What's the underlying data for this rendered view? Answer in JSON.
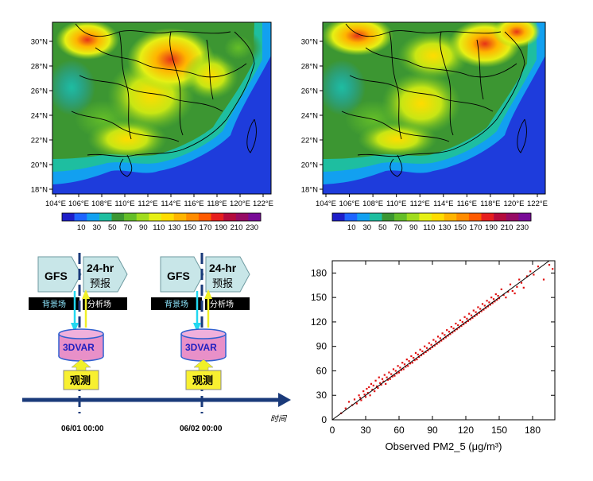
{
  "maps": [
    {
      "name": "left",
      "lat_labels": [
        "30°N",
        "28°N",
        "26°N",
        "24°N",
        "22°N",
        "20°N",
        "18°N"
      ],
      "lon_labels": [
        "104°E",
        "106°E",
        "108°E",
        "110°E",
        "112°E",
        "114°E",
        "116°E",
        "118°E",
        "120°E",
        "122°E"
      ],
      "colorbar_labels": [
        "10",
        "30",
        "50",
        "70",
        "90",
        "110",
        "130",
        "150",
        "170",
        "190",
        "210",
        "230"
      ]
    },
    {
      "name": "right",
      "lat_labels": [
        "30°N",
        "28°N",
        "26°N",
        "24°N",
        "22°N",
        "20°N",
        "18°N"
      ],
      "lon_labels": [
        "104°E",
        "106°E",
        "108°E",
        "110°E",
        "112°E",
        "114°E",
        "116°E",
        "118°E",
        "120°E",
        "122°E"
      ],
      "colorbar_labels": [
        "10",
        "30",
        "50",
        "70",
        "90",
        "110",
        "130",
        "150",
        "170",
        "190",
        "210",
        "230"
      ]
    }
  ],
  "colorbar_colors": [
    "#1e1ec8",
    "#1e64ff",
    "#12a0f0",
    "#1ebea0",
    "#3c9632",
    "#64be28",
    "#a0dc1e",
    "#e6f014",
    "#ffdc00",
    "#ffb400",
    "#ff8c00",
    "#ff5a00",
    "#e61e1e",
    "#b40a3c",
    "#960a64",
    "#780a96"
  ],
  "diagram": {
    "cycles": [
      {
        "gfs": "GFS",
        "forecast_line1": "24-hr",
        "forecast_line2": "预报",
        "bg_label": "背景场",
        "an_label": "分析场",
        "threedvar": "3DVAR",
        "obs": "观测",
        "time": "06/01 00:00"
      },
      {
        "gfs": "GFS",
        "forecast_line1": "24-hr",
        "forecast_line2": "预报",
        "bg_label": "背景场",
        "an_label": "分析场",
        "threedvar": "3DVAR",
        "obs": "观测",
        "time": "06/02  00:00"
      }
    ],
    "axis_label": "时间"
  },
  "chart_data": {
    "type": "scatter",
    "title": "",
    "xlabel": "Observed PM2_5 (μg/m³)",
    "ylabel": "",
    "xlim": [
      0,
      200
    ],
    "ylim": [
      0,
      195
    ],
    "xticks": [
      0,
      30,
      60,
      90,
      120,
      150,
      180
    ],
    "yticks": [
      0,
      30,
      60,
      90,
      120,
      150,
      180
    ],
    "marker_color": "#e01010",
    "reference_line": "1:1",
    "series": [
      {
        "name": "points",
        "x": [
          8,
          12,
          15,
          18,
          20,
          22,
          24,
          25,
          26,
          28,
          29,
          30,
          31,
          32,
          33,
          34,
          35,
          36,
          37,
          38,
          39,
          40,
          41,
          42,
          43,
          44,
          45,
          46,
          47,
          48,
          49,
          50,
          51,
          52,
          53,
          54,
          55,
          56,
          57,
          58,
          59,
          60,
          61,
          62,
          63,
          64,
          65,
          66,
          67,
          68,
          69,
          70,
          71,
          72,
          73,
          74,
          75,
          76,
          77,
          78,
          79,
          80,
          81,
          82,
          83,
          84,
          85,
          86,
          87,
          88,
          89,
          90,
          91,
          92,
          93,
          94,
          95,
          96,
          97,
          98,
          99,
          100,
          101,
          102,
          103,
          104,
          105,
          106,
          107,
          108,
          109,
          110,
          111,
          112,
          113,
          114,
          115,
          116,
          117,
          118,
          119,
          120,
          121,
          122,
          123,
          124,
          125,
          126,
          127,
          128,
          129,
          130,
          131,
          132,
          133,
          134,
          135,
          136,
          137,
          138,
          139,
          140,
          141,
          142,
          143,
          144,
          145,
          146,
          147,
          148,
          149,
          150,
          152,
          154,
          156,
          158,
          160,
          162,
          164,
          166,
          168,
          170,
          172,
          175,
          178,
          181,
          185,
          190,
          195,
          198
        ],
        "y": [
          8,
          14,
          22,
          18,
          25,
          20,
          30,
          27,
          24,
          35,
          31,
          28,
          38,
          33,
          40,
          30,
          44,
          37,
          42,
          35,
          48,
          41,
          39,
          52,
          45,
          43,
          50,
          47,
          55,
          44,
          52,
          49,
          58,
          50,
          56,
          53,
          62,
          54,
          60,
          57,
          66,
          58,
          64,
          61,
          70,
          62,
          68,
          65,
          74,
          66,
          72,
          69,
          78,
          70,
          76,
          73,
          82,
          74,
          80,
          77,
          86,
          79,
          84,
          81,
          90,
          83,
          88,
          85,
          94,
          87,
          92,
          89,
          98,
          91,
          96,
          93,
          102,
          95,
          100,
          97,
          106,
          99,
          104,
          101,
          110,
          103,
          108,
          105,
          114,
          107,
          112,
          109,
          118,
          111,
          116,
          113,
          122,
          115,
          120,
          117,
          126,
          119,
          124,
          121,
          130,
          123,
          128,
          125,
          134,
          127,
          132,
          129,
          138,
          131,
          136,
          133,
          142,
          135,
          140,
          137,
          146,
          139,
          144,
          141,
          150,
          143,
          148,
          145,
          154,
          147,
          152,
          149,
          160,
          153,
          150,
          157,
          166,
          158,
          155,
          163,
          172,
          168,
          162,
          176,
          182,
          178,
          188,
          172,
          190,
          185
        ]
      }
    ]
  }
}
